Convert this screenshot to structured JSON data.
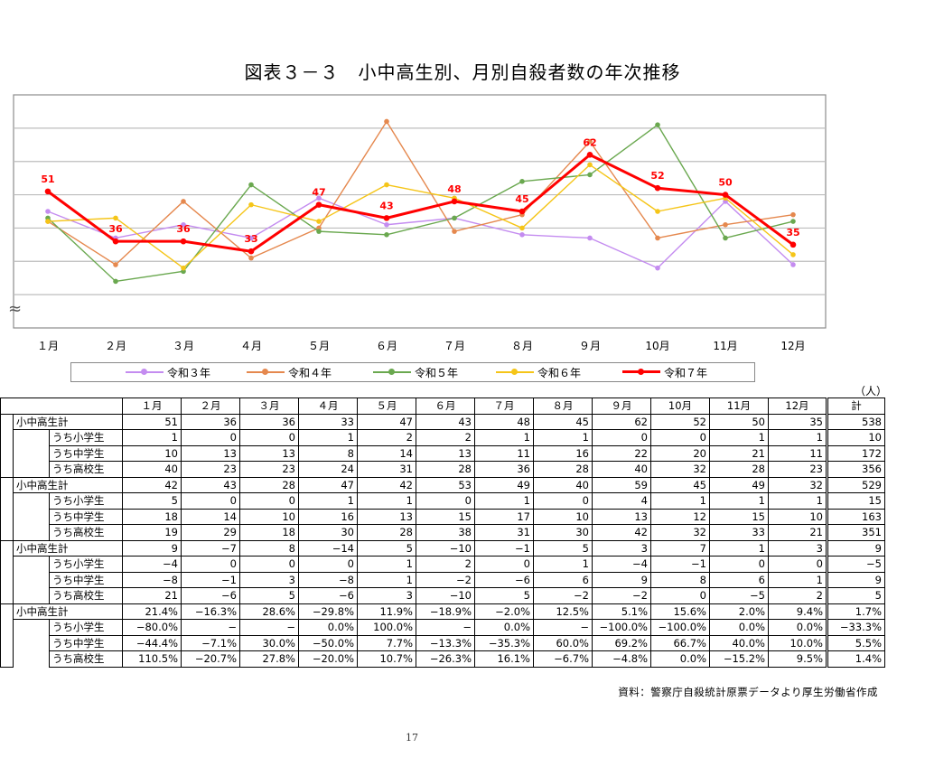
{
  "title": "図表３－３　小中高生別、月別自殺者数の年次推移",
  "chart_data": {
    "type": "line",
    "categories": [
      "１月",
      "２月",
      "３月",
      "４月",
      "５月",
      "６月",
      "７月",
      "８月",
      "９月",
      "10月",
      "11月",
      "12月"
    ],
    "series": [
      {
        "name": "令和３年",
        "color": "#c48cf0",
        "values": [
          45,
          37,
          41,
          37,
          49,
          41,
          43,
          38,
          37,
          28,
          48,
          29
        ]
      },
      {
        "name": "令和４年",
        "color": "#e5884e",
        "values": [
          42,
          29,
          48,
          31,
          40,
          72,
          39,
          44,
          66,
          37,
          41,
          44
        ]
      },
      {
        "name": "令和５年",
        "color": "#6aa84f",
        "values": [
          43,
          24,
          27,
          53,
          39,
          38,
          43,
          54,
          56,
          71,
          37,
          42
        ]
      },
      {
        "name": "令和６年",
        "color": "#f5c518",
        "values": [
          42,
          43,
          28,
          47,
          42,
          53,
          49,
          40,
          59,
          45,
          49,
          32
        ]
      },
      {
        "name": "令和７年",
        "color": "#ff0000",
        "bold": true,
        "values": [
          51,
          36,
          36,
          33,
          47,
          43,
          48,
          45,
          62,
          52,
          50,
          35
        ]
      }
    ],
    "data_labels": [
      "51",
      "36",
      "36",
      "33",
      "47",
      "43",
      "48",
      "45",
      "62",
      "52",
      "50",
      "35"
    ],
    "ylim": [
      10,
      80
    ],
    "gridlines": [
      20,
      30,
      40,
      50,
      60,
      70
    ],
    "axis_break": "≈",
    "legend_position": "bottom",
    "grid": true
  },
  "unit": "（人）",
  "table": {
    "headers": [
      "１月",
      "２月",
      "３月",
      "４月",
      "５月",
      "６月",
      "７月",
      "８月",
      "９月",
      "10月",
      "11月",
      "12月",
      "計"
    ],
    "groups": [
      {
        "rows": [
          {
            "label": "小中高生計",
            "level": 1,
            "values": [
              "51",
              "36",
              "36",
              "33",
              "47",
              "43",
              "48",
              "45",
              "62",
              "52",
              "50",
              "35",
              "538"
            ]
          },
          {
            "label": "うち小学生",
            "level": 2,
            "values": [
              "1",
              "0",
              "0",
              "1",
              "2",
              "2",
              "1",
              "1",
              "0",
              "0",
              "1",
              "1",
              "10"
            ]
          },
          {
            "label": "うち中学生",
            "level": 2,
            "values": [
              "10",
              "13",
              "13",
              "8",
              "14",
              "13",
              "11",
              "16",
              "22",
              "20",
              "21",
              "11",
              "172"
            ]
          },
          {
            "label": "うち高校生",
            "level": 2,
            "values": [
              "40",
              "23",
              "23",
              "24",
              "31",
              "28",
              "36",
              "28",
              "40",
              "32",
              "28",
              "23",
              "356"
            ]
          }
        ]
      },
      {
        "rows": [
          {
            "label": "小中高生計",
            "level": 1,
            "values": [
              "42",
              "43",
              "28",
              "47",
              "42",
              "53",
              "49",
              "40",
              "59",
              "45",
              "49",
              "32",
              "529"
            ]
          },
          {
            "label": "うち小学生",
            "level": 2,
            "values": [
              "5",
              "0",
              "0",
              "1",
              "1",
              "0",
              "1",
              "0",
              "4",
              "1",
              "1",
              "1",
              "15"
            ]
          },
          {
            "label": "うち中学生",
            "level": 2,
            "values": [
              "18",
              "14",
              "10",
              "16",
              "13",
              "15",
              "17",
              "10",
              "13",
              "12",
              "15",
              "10",
              "163"
            ]
          },
          {
            "label": "うち高校生",
            "level": 2,
            "values": [
              "19",
              "29",
              "18",
              "30",
              "28",
              "38",
              "31",
              "30",
              "42",
              "32",
              "33",
              "21",
              "351"
            ]
          }
        ]
      },
      {
        "rows": [
          {
            "label": "小中高生計",
            "level": 1,
            "values": [
              "9",
              "−7",
              "8",
              "−14",
              "5",
              "−10",
              "−1",
              "5",
              "3",
              "7",
              "1",
              "3",
              "9"
            ]
          },
          {
            "label": "うち小学生",
            "level": 2,
            "values": [
              "−4",
              "0",
              "0",
              "0",
              "1",
              "2",
              "0",
              "1",
              "−4",
              "−1",
              "0",
              "0",
              "−5"
            ]
          },
          {
            "label": "うち中学生",
            "level": 2,
            "values": [
              "−8",
              "−1",
              "3",
              "−8",
              "1",
              "−2",
              "−6",
              "6",
              "9",
              "8",
              "6",
              "1",
              "9"
            ]
          },
          {
            "label": "うち高校生",
            "level": 2,
            "values": [
              "21",
              "−6",
              "5",
              "−6",
              "3",
              "−10",
              "5",
              "−2",
              "−2",
              "0",
              "−5",
              "2",
              "5"
            ]
          }
        ]
      },
      {
        "rows": [
          {
            "label": "小中高生計",
            "level": 1,
            "values": [
              "21.4%",
              "−16.3%",
              "28.6%",
              "−29.8%",
              "11.9%",
              "−18.9%",
              "−2.0%",
              "12.5%",
              "5.1%",
              "15.6%",
              "2.0%",
              "9.4%",
              "1.7%"
            ]
          },
          {
            "label": "うち小学生",
            "level": 2,
            "values": [
              "−80.0%",
              "−",
              "−",
              "0.0%",
              "100.0%",
              "−",
              "0.0%",
              "−",
              "−100.0%",
              "−100.0%",
              "0.0%",
              "0.0%",
              "−33.3%"
            ]
          },
          {
            "label": "うち中学生",
            "level": 2,
            "values": [
              "−44.4%",
              "−7.1%",
              "30.0%",
              "−50.0%",
              "7.7%",
              "−13.3%",
              "−35.3%",
              "60.0%",
              "69.2%",
              "66.7%",
              "40.0%",
              "10.0%",
              "5.5%"
            ]
          },
          {
            "label": "うち高校生",
            "level": 2,
            "values": [
              "110.5%",
              "−20.7%",
              "27.8%",
              "−20.0%",
              "10.7%",
              "−26.3%",
              "16.1%",
              "−6.7%",
              "−4.8%",
              "0.0%",
              "−15.2%",
              "9.5%",
              "1.4%"
            ]
          }
        ]
      }
    ]
  },
  "source": "資料：警察庁自殺統計原票データより厚生労働省作成",
  "page_number": "17"
}
